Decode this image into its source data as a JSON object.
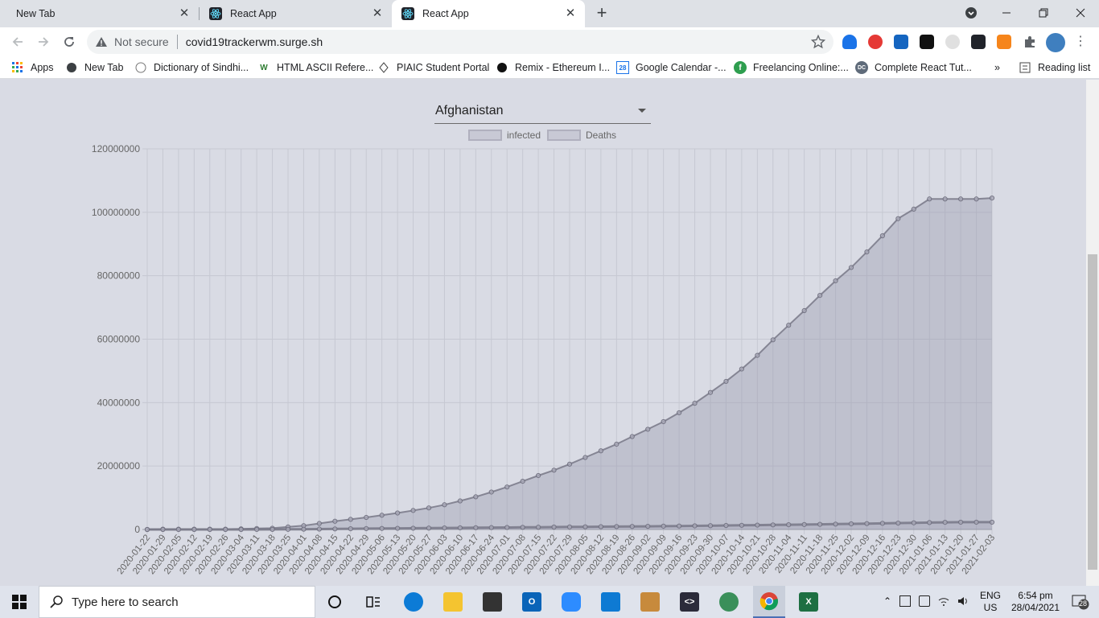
{
  "browser": {
    "tabs": [
      {
        "title": "New Tab",
        "active": false
      },
      {
        "title": "React App",
        "active": false
      },
      {
        "title": "React App",
        "active": true
      }
    ],
    "omnibox": {
      "security": "Not secure",
      "url": "covid19trackerwm.surge.sh"
    },
    "bookmarks": [
      {
        "label": "Apps",
        "icon": "apps-grid-icon"
      },
      {
        "label": "New Tab",
        "icon": "globe-icon"
      },
      {
        "label": "Dictionary of Sindhi...",
        "icon": "dictionary-icon"
      },
      {
        "label": "HTML ASCII Refere...",
        "icon": "w3-icon"
      },
      {
        "label": "PIAIC Student Portal",
        "icon": "piaic-icon"
      },
      {
        "label": "Remix - Ethereum I...",
        "icon": "remix-icon"
      },
      {
        "label": "Google Calendar -...",
        "icon": "calendar-icon"
      },
      {
        "label": "Freelancing Online:...",
        "icon": "freelancer-icon"
      },
      {
        "label": "Complete React Tut...",
        "icon": "dc-icon"
      },
      {
        "label": "»",
        "icon": "more-bookmarks-icon"
      },
      {
        "label": "Reading list",
        "icon": "reading-list-icon"
      }
    ]
  },
  "app": {
    "country_select": {
      "value": "Afghanistan"
    }
  },
  "chart_data": {
    "type": "line",
    "fill": true,
    "legend": [
      "infected",
      "Deaths"
    ],
    "legend_position": "top",
    "grid": true,
    "ylim": [
      0,
      120000000
    ],
    "y_ticks": [
      "120000000",
      "100000000",
      "80000000",
      "60000000",
      "40000000",
      "20000000",
      "0"
    ],
    "x_tick_labels": [
      "2020-01-22",
      "2020-01-29",
      "2020-02-05",
      "2020-02-12",
      "2020-02-19",
      "2020-02-26",
      "2020-03-04",
      "2020-03-11",
      "2020-03-18",
      "2020-03-25",
      "2020-04-01",
      "2020-04-08",
      "2020-04-15",
      "2020-04-22",
      "2020-04-29",
      "2020-05-06",
      "2020-05-13",
      "2020-05-20",
      "2020-05-27",
      "2020-06-03",
      "2020-06-10",
      "2020-06-17",
      "2020-06-24",
      "2020-07-01",
      "2020-07-08",
      "2020-07-15",
      "2020-07-22",
      "2020-07-29",
      "2020-08-05",
      "2020-08-12",
      "2020-08-19",
      "2020-08-26",
      "2020-09-02",
      "2020-09-09",
      "2020-09-16",
      "2020-09-23",
      "2020-09-30",
      "2020-10-07",
      "2020-10-14",
      "2020-10-21",
      "2020-10-28",
      "2020-11-04",
      "2020-11-11",
      "2020-11-18",
      "2020-11-25",
      "2020-12-02",
      "2020-12-09",
      "2020-12-16",
      "2020-12-23",
      "2020-12-30",
      "2021-01-06",
      "2021-01-13",
      "2021-01-20",
      "2021-01-27",
      "2021-02-03"
    ],
    "series": [
      {
        "name": "infected",
        "values": [
          0,
          100000,
          100000,
          100000,
          100000,
          100000,
          200000,
          300000,
          400000,
          800000,
          1200000,
          1900000,
          2600000,
          3200000,
          3800000,
          4500000,
          5200000,
          6000000,
          6800000,
          7800000,
          9000000,
          10300000,
          11800000,
          13400000,
          15200000,
          17000000,
          18700000,
          20600000,
          22700000,
          24800000,
          26900000,
          29300000,
          31600000,
          34000000,
          36800000,
          39800000,
          43200000,
          46700000,
          50600000,
          54900000,
          59800000,
          64400000,
          69000000,
          73800000,
          78400000,
          82600000,
          87500000,
          92600000,
          98000000,
          101000000,
          104200000,
          104200000,
          104200000,
          104200000,
          104500000
        ]
      },
      {
        "name": "Deaths",
        "values": [
          0,
          0,
          0,
          0,
          0,
          0,
          0,
          10000,
          20000,
          40000,
          80000,
          120000,
          180000,
          230000,
          280000,
          320000,
          360000,
          400000,
          440000,
          480000,
          520000,
          560000,
          600000,
          640000,
          680000,
          720000,
          760000,
          800000,
          840000,
          880000,
          920000,
          960000,
          1000000,
          1050000,
          1100000,
          1150000,
          1200000,
          1260000,
          1320000,
          1380000,
          1440000,
          1500000,
          1560000,
          1620000,
          1700000,
          1780000,
          1860000,
          1940000,
          2020000,
          2100000,
          2180000,
          2260000,
          2300000,
          2300000,
          2300000
        ]
      }
    ]
  },
  "taskbar": {
    "search_placeholder": "Type here to search",
    "language": "ENG",
    "region": "US",
    "time": "6:54 pm",
    "date": "28/04/2021",
    "notifications": "28"
  }
}
